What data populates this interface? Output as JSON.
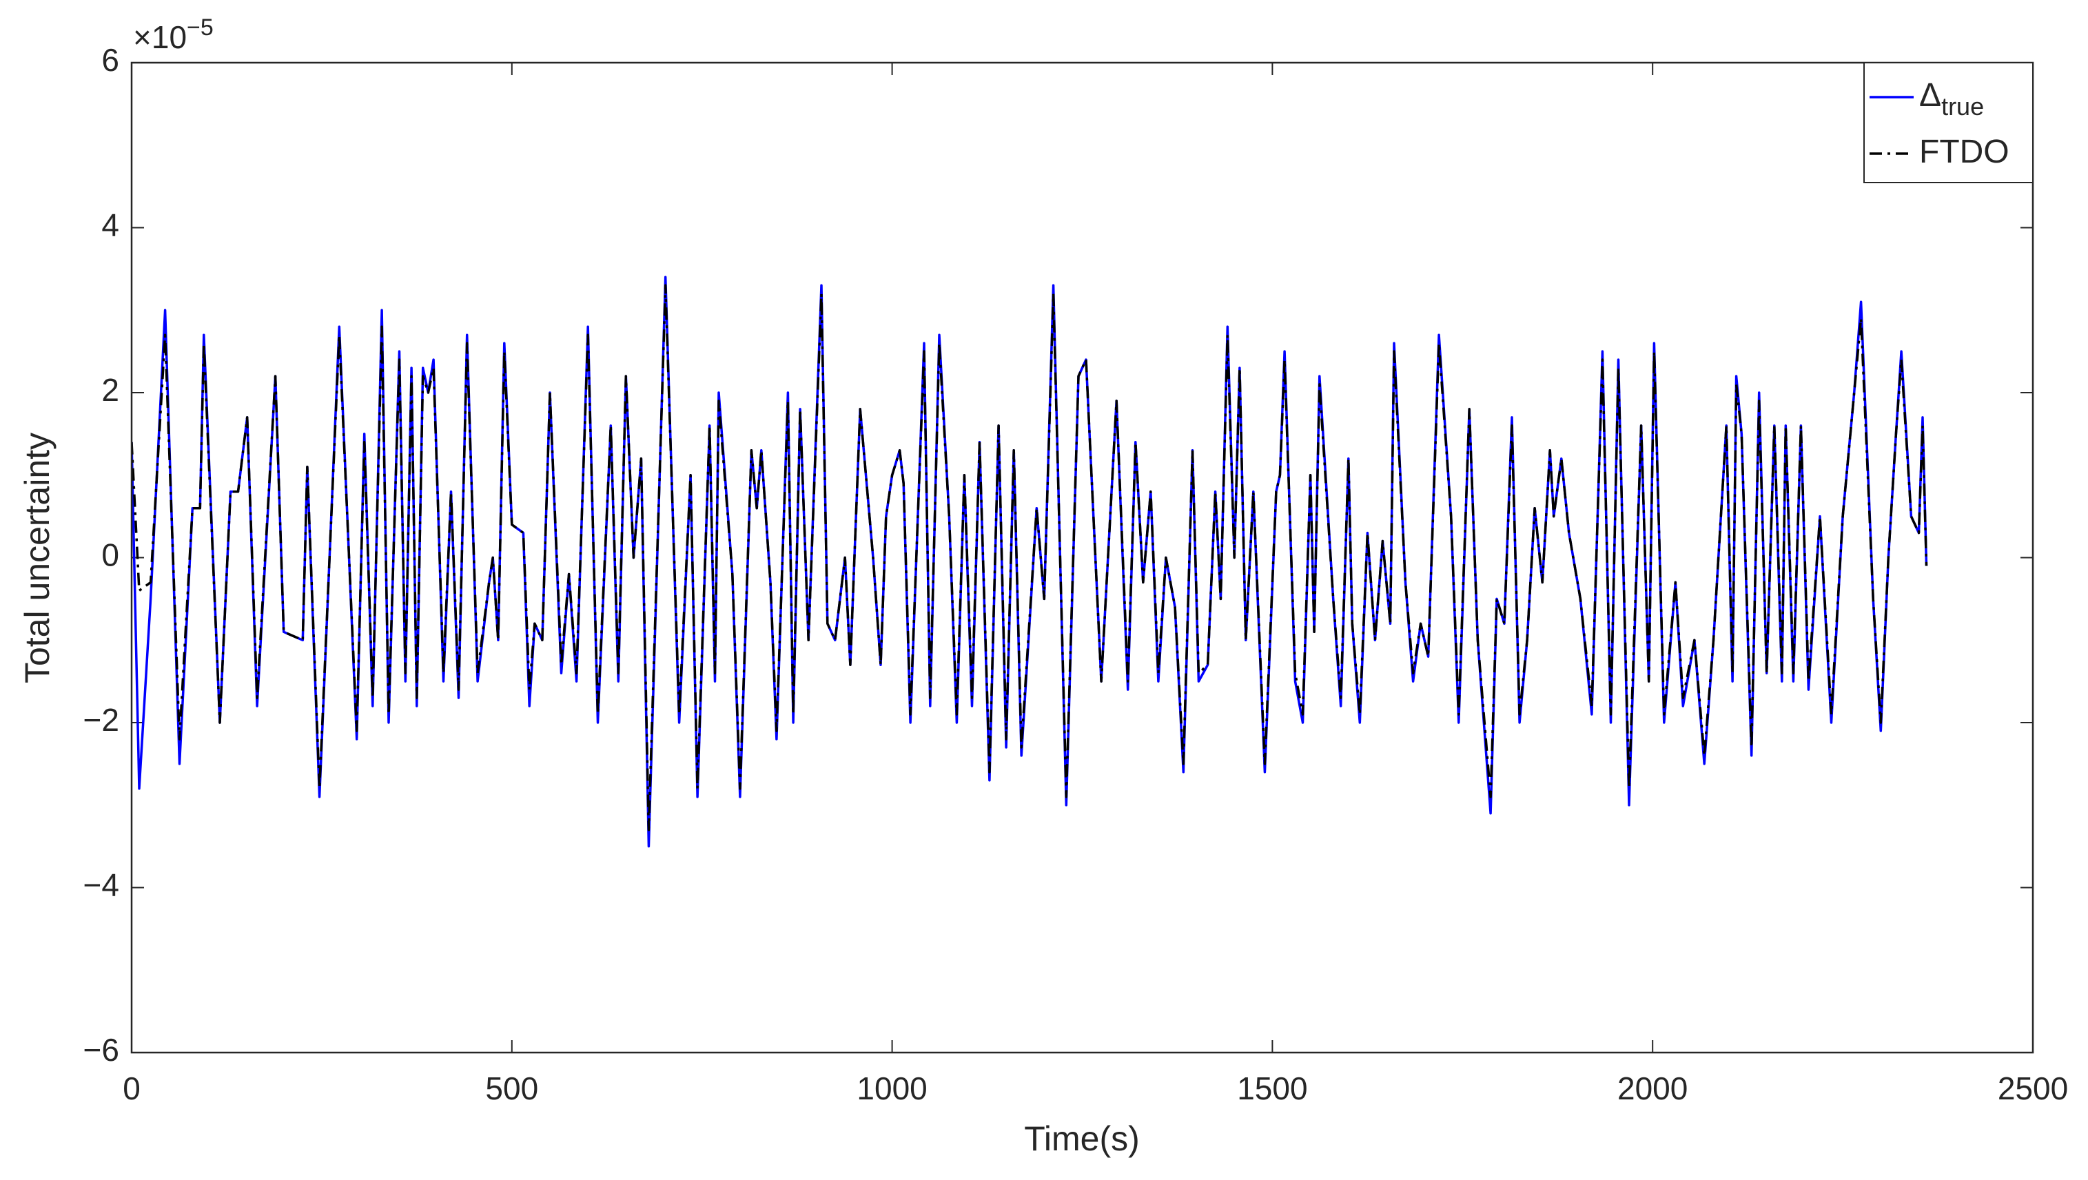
{
  "chart_data": {
    "type": "line",
    "xlabel": "Time(s)",
    "ylabel": "Total uncertainty",
    "axis_multiplier": {
      "base": "×10",
      "exponent": "−5"
    },
    "xlim": [
      0,
      2500
    ],
    "xticks": [
      0,
      500,
      1000,
      1500,
      2000,
      2500
    ],
    "ylim": [
      -6,
      6
    ],
    "yticks": [
      {
        "value": -6,
        "label": "−6"
      },
      {
        "value": -4,
        "label": "−4"
      },
      {
        "value": -2,
        "label": "−2"
      },
      0,
      2,
      4,
      6
    ],
    "grid": false,
    "box": true,
    "legend": "northeast",
    "x": [
      0,
      10,
      25,
      44,
      63,
      80,
      90,
      95,
      116,
      130,
      140,
      152,
      165,
      189,
      200,
      225,
      231,
      247,
      273,
      296,
      306,
      317,
      329,
      338,
      352,
      360,
      368,
      375,
      383,
      390,
      397,
      410,
      420,
      430,
      441,
      455,
      470,
      475,
      482,
      490,
      500,
      515,
      523,
      530,
      540,
      550,
      565,
      575,
      585,
      600,
      613,
      630,
      640,
      650,
      660,
      670,
      680,
      702,
      720,
      735,
      744,
      760,
      767,
      772,
      790,
      800,
      815,
      822,
      828,
      840,
      848,
      863,
      870,
      879,
      890,
      907,
      915,
      925,
      938,
      945,
      958,
      975,
      985,
      992,
      1000,
      1010,
      1015,
      1024,
      1042,
      1050,
      1062,
      1075,
      1085,
      1095,
      1105,
      1115,
      1128,
      1140,
      1150,
      1160,
      1170,
      1190,
      1200,
      1212,
      1229,
      1245,
      1255,
      1275,
      1295,
      1310,
      1320,
      1330,
      1340,
      1350,
      1360,
      1372,
      1383,
      1395,
      1403,
      1415,
      1425,
      1432,
      1441,
      1450,
      1457,
      1465,
      1475,
      1490,
      1505,
      1510,
      1516,
      1530,
      1540,
      1550,
      1555,
      1562,
      1580,
      1590,
      1600,
      1605,
      1615,
      1625,
      1635,
      1645,
      1655,
      1660,
      1675,
      1685,
      1695,
      1705,
      1719,
      1735,
      1745,
      1759,
      1770,
      1787,
      1795,
      1805,
      1815,
      1825,
      1835,
      1845,
      1855,
      1865,
      1870,
      1880,
      1890,
      1905,
      1920,
      1934,
      1945,
      1955,
      1969,
      1985,
      1995,
      2002,
      2015,
      2030,
      2040,
      2055,
      2068,
      2080,
      2097,
      2105,
      2110,
      2117,
      2130,
      2140,
      2150,
      2160,
      2170,
      2175,
      2185,
      2195,
      2205,
      2220,
      2235,
      2250,
      2265,
      2274,
      2290,
      2300,
      2310,
      2320,
      2327,
      2340,
      2350,
      2355,
      2360
    ],
    "series": [
      {
        "name": "Δ",
        "name_subscript": "true",
        "color": "#0000ff",
        "linestyle": "solid",
        "values": [
          1.4,
          -2.8,
          -0.5,
          3.0,
          -2.5,
          0.6,
          0.6,
          2.7,
          -2.0,
          0.8,
          0.8,
          1.7,
          -1.8,
          2.2,
          -0.9,
          -1.0,
          1.1,
          -2.9,
          2.8,
          -2.2,
          1.5,
          -1.8,
          3.0,
          -2.0,
          2.5,
          -1.5,
          2.3,
          -1.8,
          2.3,
          2.0,
          2.4,
          -1.5,
          0.8,
          -1.7,
          2.7,
          -1.5,
          -0.3,
          0.0,
          -1.0,
          2.6,
          0.4,
          0.3,
          -1.8,
          -0.8,
          -1.0,
          2.0,
          -1.4,
          -0.2,
          -1.5,
          2.8,
          -2.0,
          1.6,
          -1.5,
          2.2,
          0.0,
          1.2,
          -3.5,
          3.4,
          -2.0,
          1.0,
          -2.9,
          1.6,
          -1.5,
          2.0,
          -0.2,
          -2.9,
          1.3,
          0.6,
          1.3,
          -0.3,
          -2.2,
          2.0,
          -2.0,
          1.8,
          -1.0,
          3.3,
          -0.8,
          -1.0,
          0.0,
          -1.3,
          1.8,
          0.0,
          -1.3,
          0.5,
          1.0,
          1.3,
          0.9,
          -2.0,
          2.6,
          -1.8,
          2.7,
          0.5,
          -2.0,
          1.0,
          -1.8,
          1.4,
          -2.7,
          1.6,
          -2.3,
          1.3,
          -2.4,
          0.6,
          -0.5,
          3.3,
          -3.0,
          2.2,
          2.4,
          -1.5,
          1.9,
          -1.6,
          1.4,
          -0.3,
          0.8,
          -1.5,
          0.0,
          -0.6,
          -2.6,
          1.3,
          -1.5,
          -1.3,
          0.8,
          -0.5,
          2.8,
          0.0,
          2.3,
          -1.0,
          0.8,
          -2.6,
          0.8,
          1.0,
          2.5,
          -1.5,
          -2.0,
          1.0,
          -0.9,
          2.2,
          -0.5,
          -1.8,
          1.2,
          -0.8,
          -2.0,
          0.3,
          -1.0,
          0.2,
          -0.8,
          2.6,
          -0.3,
          -1.5,
          -0.8,
          -1.2,
          2.7,
          0.5,
          -2.0,
          1.8,
          -1.0,
          -3.1,
          -0.5,
          -0.8,
          1.7,
          -2.0,
          -1.0,
          0.6,
          -0.3,
          1.3,
          0.5,
          1.2,
          0.3,
          -0.5,
          -1.9,
          2.5,
          -2.0,
          2.4,
          -3.0,
          1.6,
          -1.5,
          2.6,
          -2.0,
          -0.3,
          -1.8,
          -1.0,
          -2.5,
          -1.0,
          1.6,
          -1.5,
          2.2,
          1.5,
          -2.4,
          2.0,
          -1.4,
          1.6,
          -1.5,
          1.6,
          -1.5,
          1.6,
          -1.6,
          0.5,
          -2.0,
          0.5,
          2.0,
          3.1,
          -0.5,
          -2.1,
          0.0,
          1.5,
          2.5,
          0.5,
          0.3,
          1.7,
          -0.1
        ]
      },
      {
        "name": "FTDO",
        "color": "#000000",
        "linestyle": "dashdot",
        "values": [
          1.4,
          -0.4,
          -0.3,
          2.7,
          -2.2,
          0.6,
          0.6,
          2.6,
          -2.0,
          0.8,
          0.8,
          1.7,
          -1.7,
          2.2,
          -0.9,
          -1.0,
          1.1,
          -2.8,
          2.7,
          -2.1,
          1.4,
          -1.7,
          2.8,
          -1.9,
          2.4,
          -1.4,
          2.2,
          -1.7,
          2.2,
          2.0,
          2.3,
          -1.4,
          0.8,
          -1.6,
          2.6,
          -1.4,
          -0.3,
          0.0,
          -1.0,
          2.5,
          0.4,
          0.3,
          -1.6,
          -0.8,
          -1.0,
          2.0,
          -1.3,
          -0.2,
          -1.4,
          2.7,
          -1.9,
          1.6,
          -1.4,
          2.2,
          0.0,
          1.2,
          -3.3,
          3.3,
          -1.9,
          1.0,
          -2.8,
          1.6,
          -1.4,
          1.9,
          -0.2,
          -2.8,
          1.3,
          0.6,
          1.3,
          -0.3,
          -2.1,
          1.9,
          -1.9,
          1.8,
          -1.0,
          3.2,
          -0.8,
          -1.0,
          0.0,
          -1.3,
          1.8,
          0.0,
          -1.3,
          0.5,
          1.0,
          1.3,
          0.9,
          -1.9,
          2.5,
          -1.7,
          2.6,
          0.5,
          -1.9,
          1.0,
          -1.7,
          1.4,
          -2.6,
          1.6,
          -2.2,
          1.3,
          -2.3,
          0.6,
          -0.5,
          3.2,
          -2.9,
          2.2,
          2.4,
          -1.5,
          1.9,
          -1.5,
          1.4,
          -0.3,
          0.8,
          -1.4,
          0.0,
          -0.6,
          -2.5,
          1.3,
          -1.4,
          -1.3,
          0.8,
          -0.5,
          2.7,
          0.0,
          2.3,
          -1.0,
          0.8,
          -2.5,
          0.8,
          1.0,
          2.4,
          -1.4,
          -1.9,
          1.0,
          -0.9,
          2.1,
          -0.5,
          -1.7,
          1.2,
          -0.8,
          -1.9,
          0.3,
          -1.0,
          0.2,
          -0.8,
          2.5,
          -0.3,
          -1.4,
          -0.8,
          -1.2,
          2.6,
          0.5,
          -1.9,
          1.8,
          -1.0,
          -2.9,
          -0.5,
          -0.8,
          1.6,
          -1.9,
          -1.0,
          0.6,
          -0.3,
          1.3,
          0.5,
          1.2,
          0.3,
          -0.5,
          -1.8,
          2.4,
          -1.9,
          2.3,
          -2.8,
          1.6,
          -1.5,
          2.5,
          -1.9,
          -0.3,
          -1.7,
          -1.0,
          -2.4,
          -1.0,
          1.6,
          -1.4,
          2.1,
          1.5,
          -2.3,
          1.9,
          -1.4,
          1.6,
          -1.4,
          1.6,
          -1.4,
          1.6,
          -1.5,
          0.5,
          -1.9,
          0.5,
          2.0,
          2.9,
          -0.5,
          -2.0,
          0.0,
          1.5,
          2.4,
          0.5,
          0.3,
          1.6,
          -0.1
        ]
      }
    ]
  }
}
